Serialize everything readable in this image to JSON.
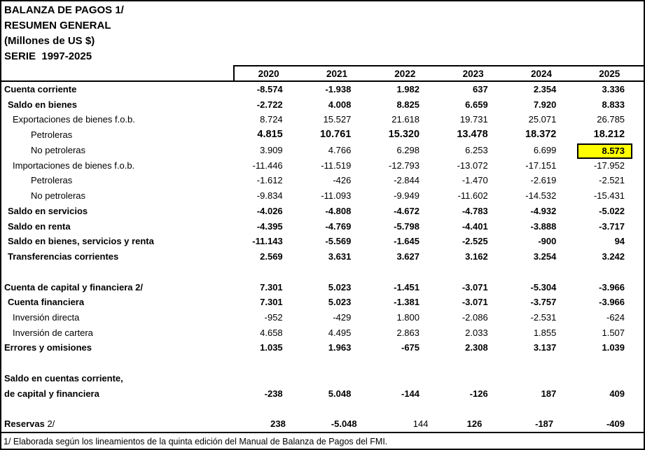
{
  "title": {
    "line1": "BALANZA DE PAGOS 1/",
    "line2": "RESUMEN GENERAL",
    "line3": "(Millones de US $)",
    "line4": "SERIE  1997-2025"
  },
  "columns": [
    "2020",
    "2021",
    "2022",
    "2023",
    "2024",
    "2025"
  ],
  "highlight_color": "#FFFF00",
  "rows": [
    {
      "label": "Cuenta corriente",
      "indent": 0,
      "bold": true,
      "values": [
        "-8.574",
        "-1.938",
        "1.982",
        "637",
        "2.354",
        "3.336"
      ]
    },
    {
      "label": "Saldo en bienes",
      "indent": 1,
      "bold": true,
      "values": [
        "-2.722",
        "4.008",
        "8.825",
        "6.659",
        "7.920",
        "8.833"
      ]
    },
    {
      "label": "Exportaciones de bienes f.o.b.",
      "indent": 2,
      "bold": false,
      "values": [
        "8.724",
        "15.527",
        "21.618",
        "19.731",
        "25.071",
        "26.785"
      ]
    },
    {
      "label": "Petroleras",
      "indent": 3,
      "bold": false,
      "values_bold": true,
      "values_large": true,
      "values": [
        "4.815",
        "10.761",
        "15.320",
        "13.478",
        "18.372",
        "18.212"
      ]
    },
    {
      "label": "No petroleras",
      "indent": 3,
      "bold": false,
      "highlight": 5,
      "values": [
        "3.909",
        "4.766",
        "6.298",
        "6.253",
        "6.699",
        "8.573"
      ]
    },
    {
      "label": "Importaciones de bienes f.o.b.",
      "indent": 2,
      "bold": false,
      "values": [
        "-11.446",
        "-11.519",
        "-12.793",
        "-13.072",
        "-17.151",
        "-17.952"
      ]
    },
    {
      "label": "Petroleras",
      "indent": 3,
      "bold": false,
      "values": [
        "-1.612",
        "-426",
        "-2.844",
        "-1.470",
        "-2.619",
        "-2.521"
      ]
    },
    {
      "label": "No petroleras",
      "indent": 3,
      "bold": false,
      "values": [
        "-9.834",
        "-11.093",
        "-9.949",
        "-11.602",
        "-14.532",
        "-15.431"
      ]
    },
    {
      "label": "Saldo en servicios",
      "indent": 1,
      "bold": true,
      "values": [
        "-4.026",
        "-4.808",
        "-4.672",
        "-4.783",
        "-4.932",
        "-5.022"
      ]
    },
    {
      "label": "Saldo en renta",
      "indent": 1,
      "bold": true,
      "values": [
        "-4.395",
        "-4.769",
        "-5.798",
        "-4.401",
        "-3.888",
        "-3.717"
      ]
    },
    {
      "label": "Saldo en bienes, servicios y renta",
      "indent": 1,
      "bold": true,
      "values": [
        "-11.143",
        "-5.569",
        "-1.645",
        "-2.525",
        "-900",
        "94"
      ]
    },
    {
      "label": "Transferencias corrientes",
      "indent": 1,
      "bold": true,
      "values": [
        "2.569",
        "3.631",
        "3.627",
        "3.162",
        "3.254",
        "3.242"
      ]
    },
    {
      "blank": true
    },
    {
      "label": "Cuenta de capital y financiera 2/",
      "indent": 0,
      "bold": true,
      "values": [
        "7.301",
        "5.023",
        "-1.451",
        "-3.071",
        "-5.304",
        "-3.966"
      ]
    },
    {
      "label": "Cuenta financiera",
      "indent": 1,
      "bold": true,
      "values": [
        "7.301",
        "5.023",
        "-1.381",
        "-3.071",
        "-3.757",
        "-3.966"
      ]
    },
    {
      "label": "Inversión directa",
      "indent": 2,
      "bold": false,
      "values": [
        "-952",
        "-429",
        "1.800",
        "-2.086",
        "-2.531",
        "-624"
      ]
    },
    {
      "label": "Inversión de cartera",
      "indent": 2,
      "bold": false,
      "values": [
        "4.658",
        "4.495",
        "2.863",
        "2.033",
        "1.855",
        "1.507"
      ]
    },
    {
      "label": "Errores y omisiones",
      "indent": 0,
      "bold": true,
      "values": [
        "1.035",
        "1.963",
        "-675",
        "2.308",
        "3.137",
        "1.039"
      ]
    },
    {
      "blank": true
    },
    {
      "label": "Saldo en cuentas corriente,",
      "indent": 0,
      "bold": true,
      "values": []
    },
    {
      "label": "de capital y financiera",
      "indent": 0,
      "bold": true,
      "values": [
        "-238",
        "5.048",
        "-144",
        "-126",
        "187",
        "409"
      ]
    },
    {
      "blank": true
    },
    {
      "label": "Reservas",
      "label_suffix": " 2/",
      "indent": 0,
      "bold": true,
      "regular_cells": [
        2
      ],
      "flush_cells": [
        2
      ],
      "values": [
        "238",
        "-5.048",
        "144",
        "126",
        "-187",
        "-409"
      ]
    }
  ],
  "footnote": "1/ Elaborada según los lineamientos de la quinta edición del Manual de Balanza de Pagos del FMI."
}
